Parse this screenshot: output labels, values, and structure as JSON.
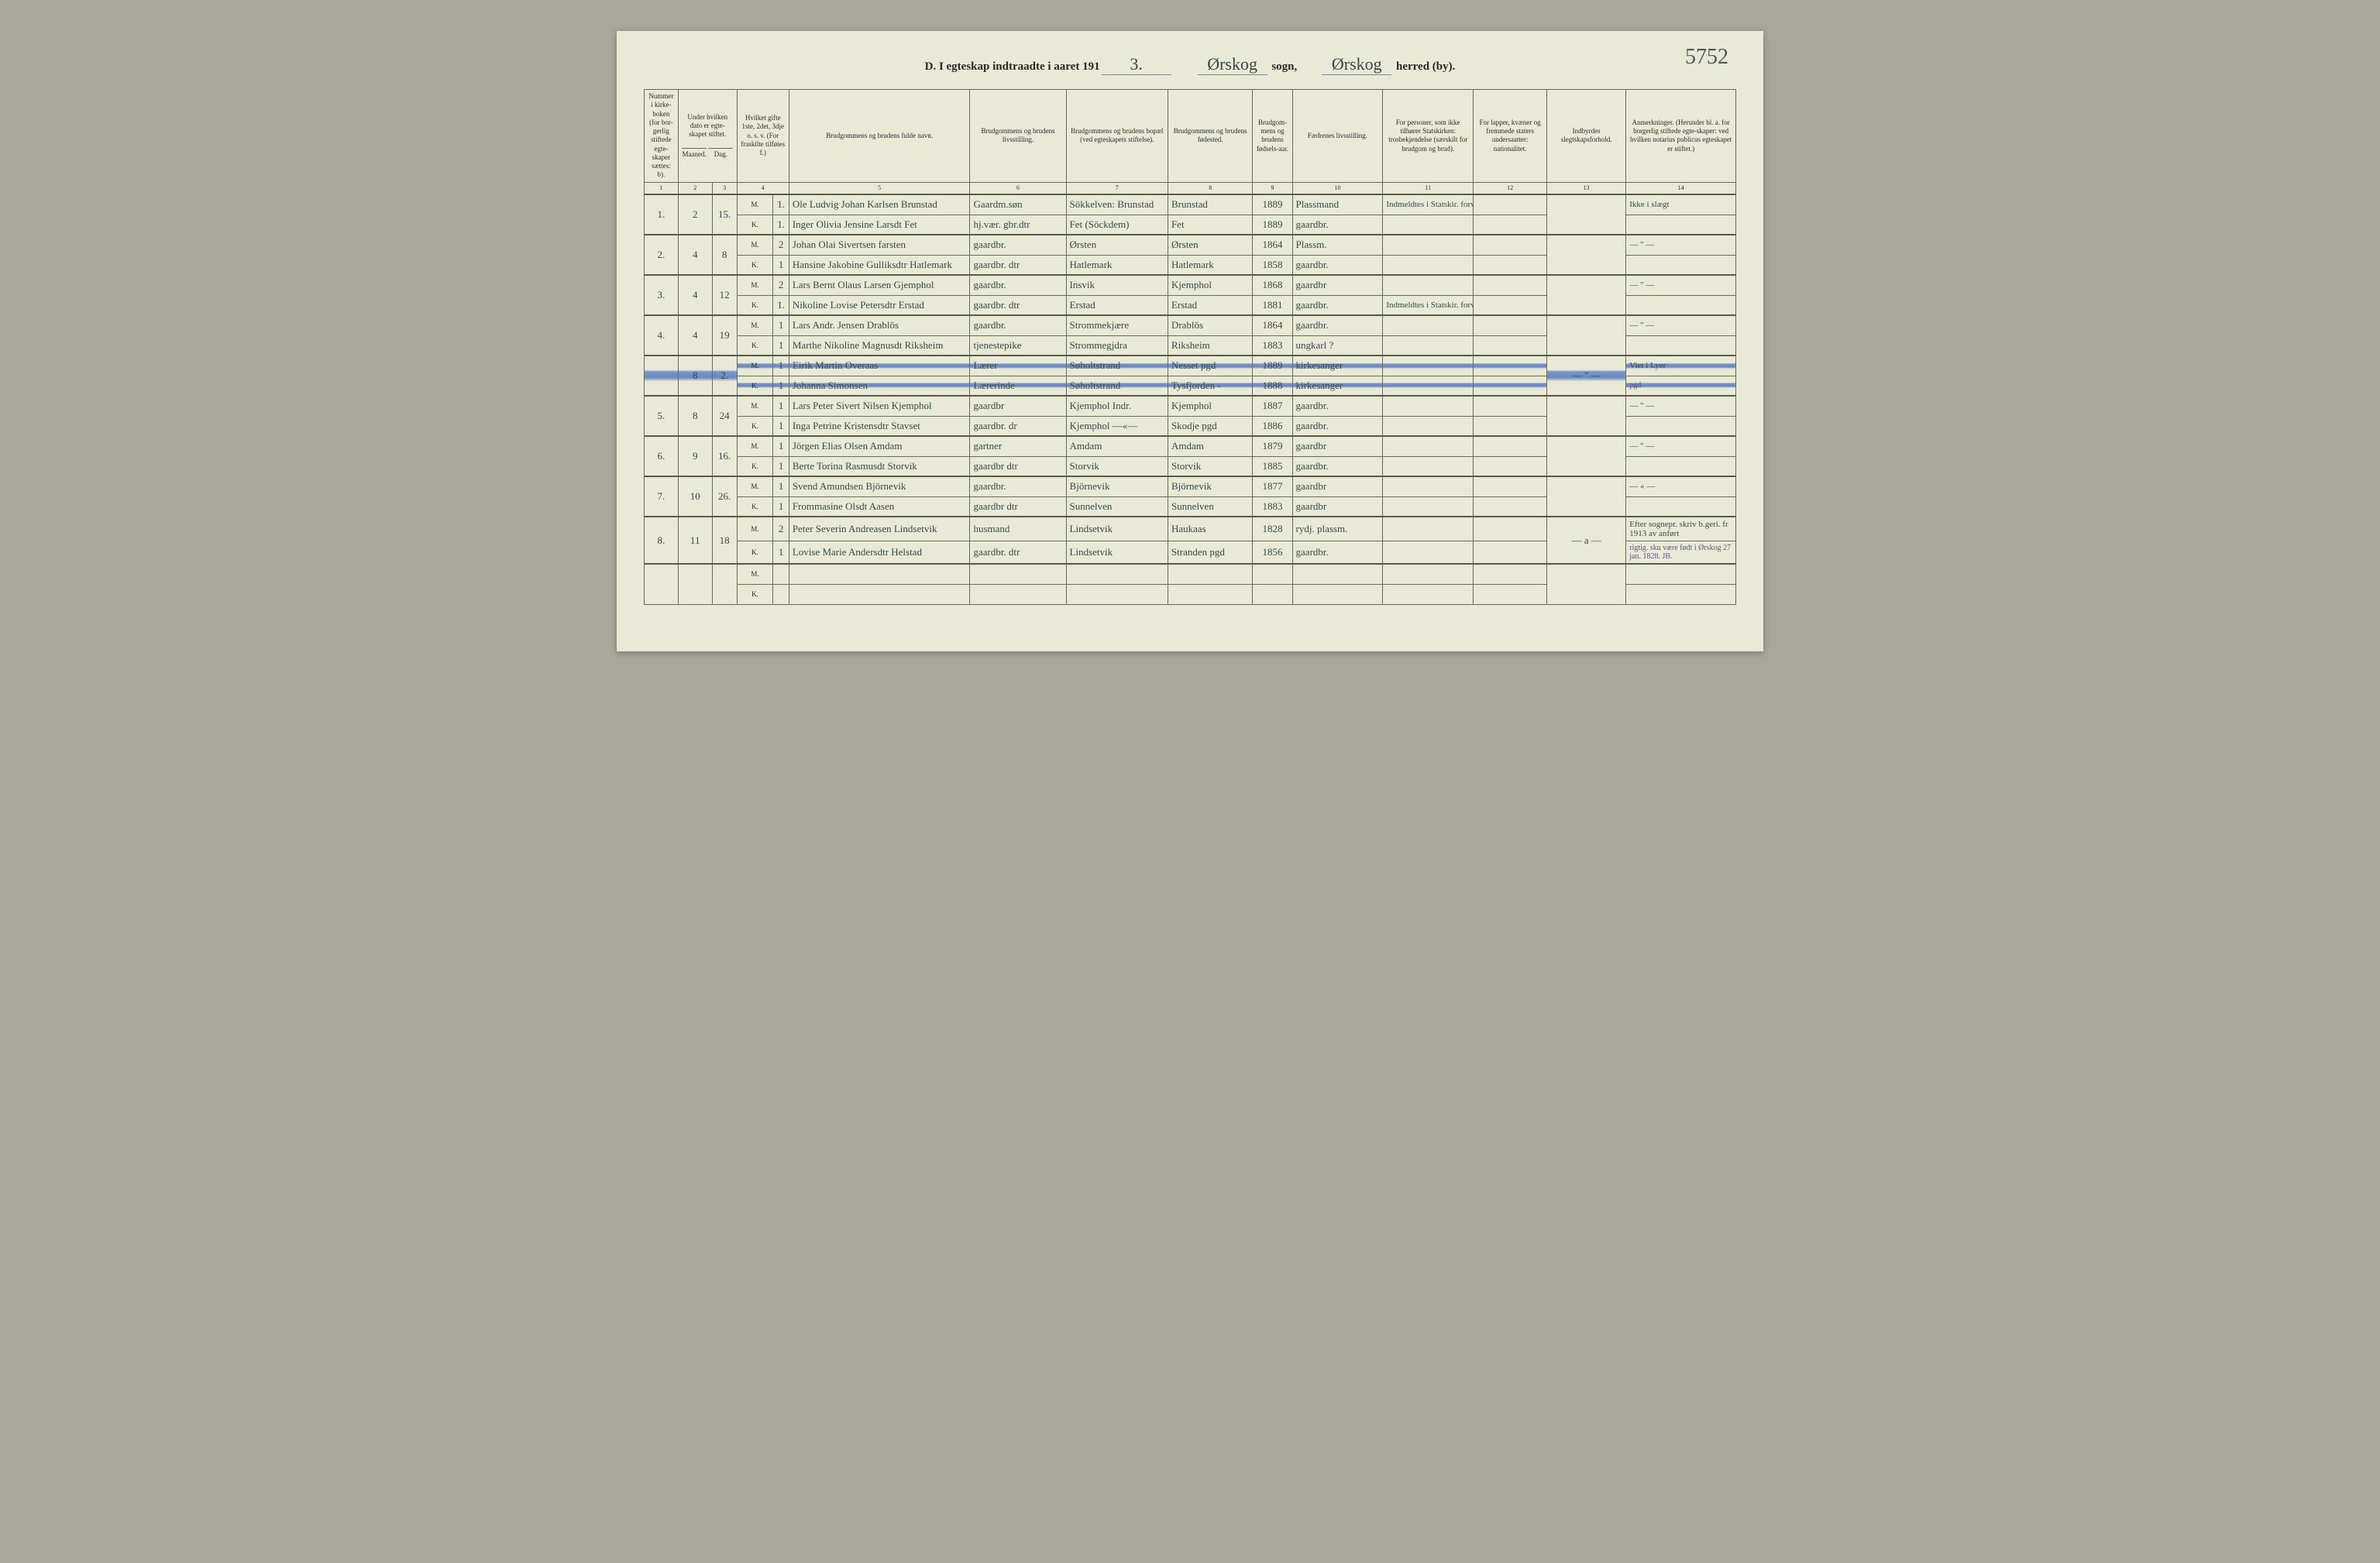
{
  "page_number_scribble": "5752",
  "header": {
    "section": "D.",
    "title_prefix": "I egteskap indtraadte i aaret 191",
    "year_suffix": "3.",
    "sogn_value": "Ørskog",
    "sogn_label": "sogn,",
    "herred_value": "Ørskog",
    "herred_label": "herred (by)."
  },
  "colors": {
    "page_bg": "#e8ead6",
    "border": "#6a6a5a",
    "script_ink": "#3a4a4a",
    "highlight_blue": "#6a88c0",
    "outer_bg": "#a8a89a"
  },
  "columns": [
    {
      "num": "1",
      "label": "Nummer i kirke-boken (for bor-gerlig stiftede egte-skaper sættes: b)."
    },
    {
      "num": "2",
      "label": "Under hvilken dato er egte-skapet stiftet.",
      "sub": [
        "Maaned.",
        "Dag."
      ]
    },
    {
      "num": "3",
      "label": ""
    },
    {
      "num": "4",
      "label": "Hvilket gifte 1ste, 2det, 3dje o. s. v. (For fraskilte tilføies f.)"
    },
    {
      "num": "5",
      "label": "Brudgommens og brudens fulde navn."
    },
    {
      "num": "6",
      "label": "Brudgommens og brudens livsstilling."
    },
    {
      "num": "7",
      "label": "Brudgommens og brudens bopæl (ved egteskapets stiftelse)."
    },
    {
      "num": "8",
      "label": "Brudgommens og brudens fødested."
    },
    {
      "num": "9",
      "label": "Brudgom-mens og brudens fødsels-aar."
    },
    {
      "num": "10",
      "label": "Fædrenes livsstilling."
    },
    {
      "num": "11",
      "label": "For personer, som ikke tilhører Statskirken: trosbekjendelse (særskilt for brudgom og brud)."
    },
    {
      "num": "12",
      "label": "For lapper, kvæner og fremmede staters undersaatter: nationalitet."
    },
    {
      "num": "13",
      "label": "Indbyrdes slegtskapsforhold."
    },
    {
      "num": "14",
      "label": "Anmerkninger. (Herunder bl. a. for borgerlig stiftede egte-skaper: ved hvilken notarius publicus egteskapet er stiftet.)"
    }
  ],
  "entries": [
    {
      "no": "1.",
      "month": "2",
      "day": "15.",
      "m": {
        "mk": "M.",
        "gifte": "1.",
        "name": "Ole Ludvig Johan Karlsen Brunstad",
        "stilling": "Gaardm.søn",
        "bopael": "Sökkelven: Brunstad",
        "fodested": "Brunstad",
        "aar": "1889",
        "faedre": "Plassmand",
        "tros": "Indmeldtes i Statskir. forvilten",
        "nat": "",
        "slegt": "",
        "anm": "Ikke i slægt"
      },
      "k": {
        "mk": "K.",
        "gifte": "1.",
        "name": "Inger Olivia Jensine Larsdt Fet",
        "stilling": "hj.vær. gbr.dtr",
        "bopael": "Fet (Söckdem)",
        "fodested": "Fet",
        "aar": "1889",
        "faedre": "gaardbr.",
        "tros": "",
        "nat": "",
        "slegt": "",
        "anm": ""
      }
    },
    {
      "no": "2.",
      "month": "4",
      "day": "8",
      "m": {
        "mk": "M.",
        "gifte": "2",
        "name": "Johan Olai Sivertsen farsten",
        "stilling": "gaardbr.",
        "bopael": "Ørsten",
        "fodested": "Ørsten",
        "aar": "1864",
        "faedre": "Plassm.",
        "tros": "",
        "nat": "",
        "slegt": "",
        "anm": "— \" —"
      },
      "k": {
        "mk": "K.",
        "gifte": "1",
        "name": "Hansine Jakobine Gulliksdtr Hatlemark",
        "stilling": "gaardbr. dtr",
        "bopael": "Hatlemark",
        "fodested": "Hatlemark",
        "aar": "1858",
        "faedre": "gaardbr.",
        "tros": "",
        "nat": "",
        "slegt": "",
        "anm": ""
      }
    },
    {
      "no": "3.",
      "month": "4",
      "day": "12",
      "m": {
        "mk": "M.",
        "gifte": "2",
        "name": "Lars Bernt Olaus Larsen Gjemphol",
        "stilling": "gaardbr.",
        "bopael": "Insvik",
        "fodested": "Kjemphol",
        "aar": "1868",
        "faedre": "gaardbr",
        "tros": "",
        "nat": "",
        "slegt": "",
        "anm": "— \" —"
      },
      "k": {
        "mk": "K.",
        "gifte": "1.",
        "name": "Nikoline Lovise Petersdtr Erstad",
        "stilling": "gaardbr. dtr",
        "bopael": "Erstad",
        "fodested": "Erstad",
        "aar": "1881",
        "faedre": "gaardbr.",
        "tros": "Indmeldtes i Statskir. forvilten",
        "nat": "",
        "slegt": "",
        "anm": ""
      }
    },
    {
      "no": "4.",
      "month": "4",
      "day": "19",
      "m": {
        "mk": "M.",
        "gifte": "1",
        "name": "Lars Andr. Jensen Drablös",
        "stilling": "gaardbr.",
        "bopael": "Strommekjære",
        "fodested": "Drablös",
        "aar": "1864",
        "faedre": "gaardbr.",
        "tros": "",
        "nat": "",
        "slegt": "",
        "anm": "— \" —"
      },
      "k": {
        "mk": "K.",
        "gifte": "1",
        "name": "Marthe Nikoline Magnusdt Riksheim",
        "stilling": "tjenestepike",
        "bopael": "Strommegjdra",
        "fodested": "Riksheim",
        "aar": "1883",
        "faedre": "ungkarl  ?",
        "tros": "",
        "nat": "",
        "slegt": "",
        "anm": ""
      }
    },
    {
      "no": "",
      "month": "8",
      "day": "2.",
      "highlight": true,
      "m": {
        "mk": "M.",
        "gifte": "1",
        "name": "Eirik Martin Overaas",
        "stilling": "Lærer",
        "bopael": "Søholtstrand",
        "fodested": "Nesset pgd",
        "aar": "1889",
        "faedre": "kirkesanger",
        "tros": "",
        "nat": "",
        "slegt": "",
        "anm": "Viet i Lyer"
      },
      "k": {
        "mk": "K.",
        "gifte": "1",
        "name": "Johanna Simonsen",
        "stilling": "Lærerinde",
        "bopael": "Søholtstrand",
        "fodested": "Tysfjorden -",
        "aar": "1888",
        "faedre": "kirkesanger",
        "tros": "",
        "nat": "",
        "slegt": "— \" —",
        "anm": "pgd"
      }
    },
    {
      "no": "5.",
      "month": "8",
      "day": "24",
      "m": {
        "mk": "M.",
        "gifte": "1",
        "name": "Lars Peter Sivert Nilsen Kjemphol",
        "stilling": "gaardbr",
        "bopael": "Kjemphol Indr.",
        "fodested": "Kjemphol",
        "aar": "1887",
        "faedre": "gaardbr.",
        "tros": "",
        "nat": "",
        "slegt": "",
        "anm": "— \" —"
      },
      "k": {
        "mk": "K.",
        "gifte": "1",
        "name": "Inga Petrine Kristensdtr Stavset",
        "stilling": "gaardbr. dr",
        "bopael": "Kjemphol  —«—",
        "fodested": "Skodje pgd",
        "aar": "1886",
        "faedre": "gaardbr.",
        "tros": "",
        "nat": "",
        "slegt": "",
        "anm": ""
      }
    },
    {
      "no": "6.",
      "month": "9",
      "day": "16.",
      "m": {
        "mk": "M.",
        "gifte": "1",
        "name": "Jörgen Elias Olsen Amdam",
        "stilling": "gartner",
        "bopael": "Amdam",
        "fodested": "Amdam",
        "aar": "1879",
        "faedre": "gaardbr",
        "tros": "",
        "nat": "",
        "slegt": "",
        "anm": "— \" —"
      },
      "k": {
        "mk": "K.",
        "gifte": "1",
        "name": "Berte Torina Rasmusdt Storvik",
        "stilling": "gaardbr dtr",
        "bopael": "Storvik",
        "fodested": "Storvik",
        "aar": "1885",
        "faedre": "gaardbr.",
        "tros": "",
        "nat": "",
        "slegt": "",
        "anm": ""
      }
    },
    {
      "no": "7.",
      "month": "10",
      "day": "26.",
      "m": {
        "mk": "M.",
        "gifte": "1",
        "name": "Svend Amundsen Björnevik",
        "stilling": "gaardbr.",
        "bopael": "Björnevik",
        "fodested": "Björnevik",
        "aar": "1877",
        "faedre": "gaardbr",
        "tros": "",
        "nat": "",
        "slegt": "",
        "anm": "— « —"
      },
      "k": {
        "mk": "K.",
        "gifte": "1",
        "name": "Frommasine Olsdt Aasen",
        "stilling": "gaardbr dtr",
        "bopael": "Sunnelven",
        "fodested": "Sunnelven",
        "aar": "1883",
        "faedre": "gaardbr",
        "tros": "",
        "nat": "",
        "slegt": "",
        "anm": ""
      }
    },
    {
      "no": "8.",
      "month": "11",
      "day": "18",
      "m": {
        "mk": "M.",
        "gifte": "2",
        "name": "Peter Severin Andreasen Lindsetvik",
        "stilling": "husmand",
        "bopael": "Lindsetvik",
        "fodested": "Haukaas",
        "aar": "1828",
        "faedre": "rydj. plassm.",
        "tros": "",
        "nat": "",
        "slegt": "",
        "anm": "Efter sognepr. skriv b.geri. fr 1913 av anført"
      },
      "k": {
        "mk": "K.",
        "gifte": "1",
        "name": "Lovise Marie Andersdtr Helstad",
        "stilling": "gaardbr. dtr",
        "bopael": "Lindsetvik",
        "fodested": "Stranden pgd",
        "aar": "1856",
        "faedre": "gaardbr.",
        "tros": "",
        "nat": "",
        "slegt": "— a —",
        "anm": "rigtig. sku være født i Ørskog 27 jan. 1828.  JB."
      }
    },
    {
      "no": "",
      "month": "",
      "day": "",
      "m": {
        "mk": "M.",
        "gifte": "",
        "name": "",
        "stilling": "",
        "bopael": "",
        "fodested": "",
        "aar": "",
        "faedre": "",
        "tros": "",
        "nat": "",
        "slegt": "",
        "anm": ""
      },
      "k": {
        "mk": "K.",
        "gifte": "",
        "name": "",
        "stilling": "",
        "bopael": "",
        "fodested": "",
        "aar": "",
        "faedre": "",
        "tros": "",
        "nat": "",
        "slegt": "",
        "anm": ""
      }
    }
  ]
}
